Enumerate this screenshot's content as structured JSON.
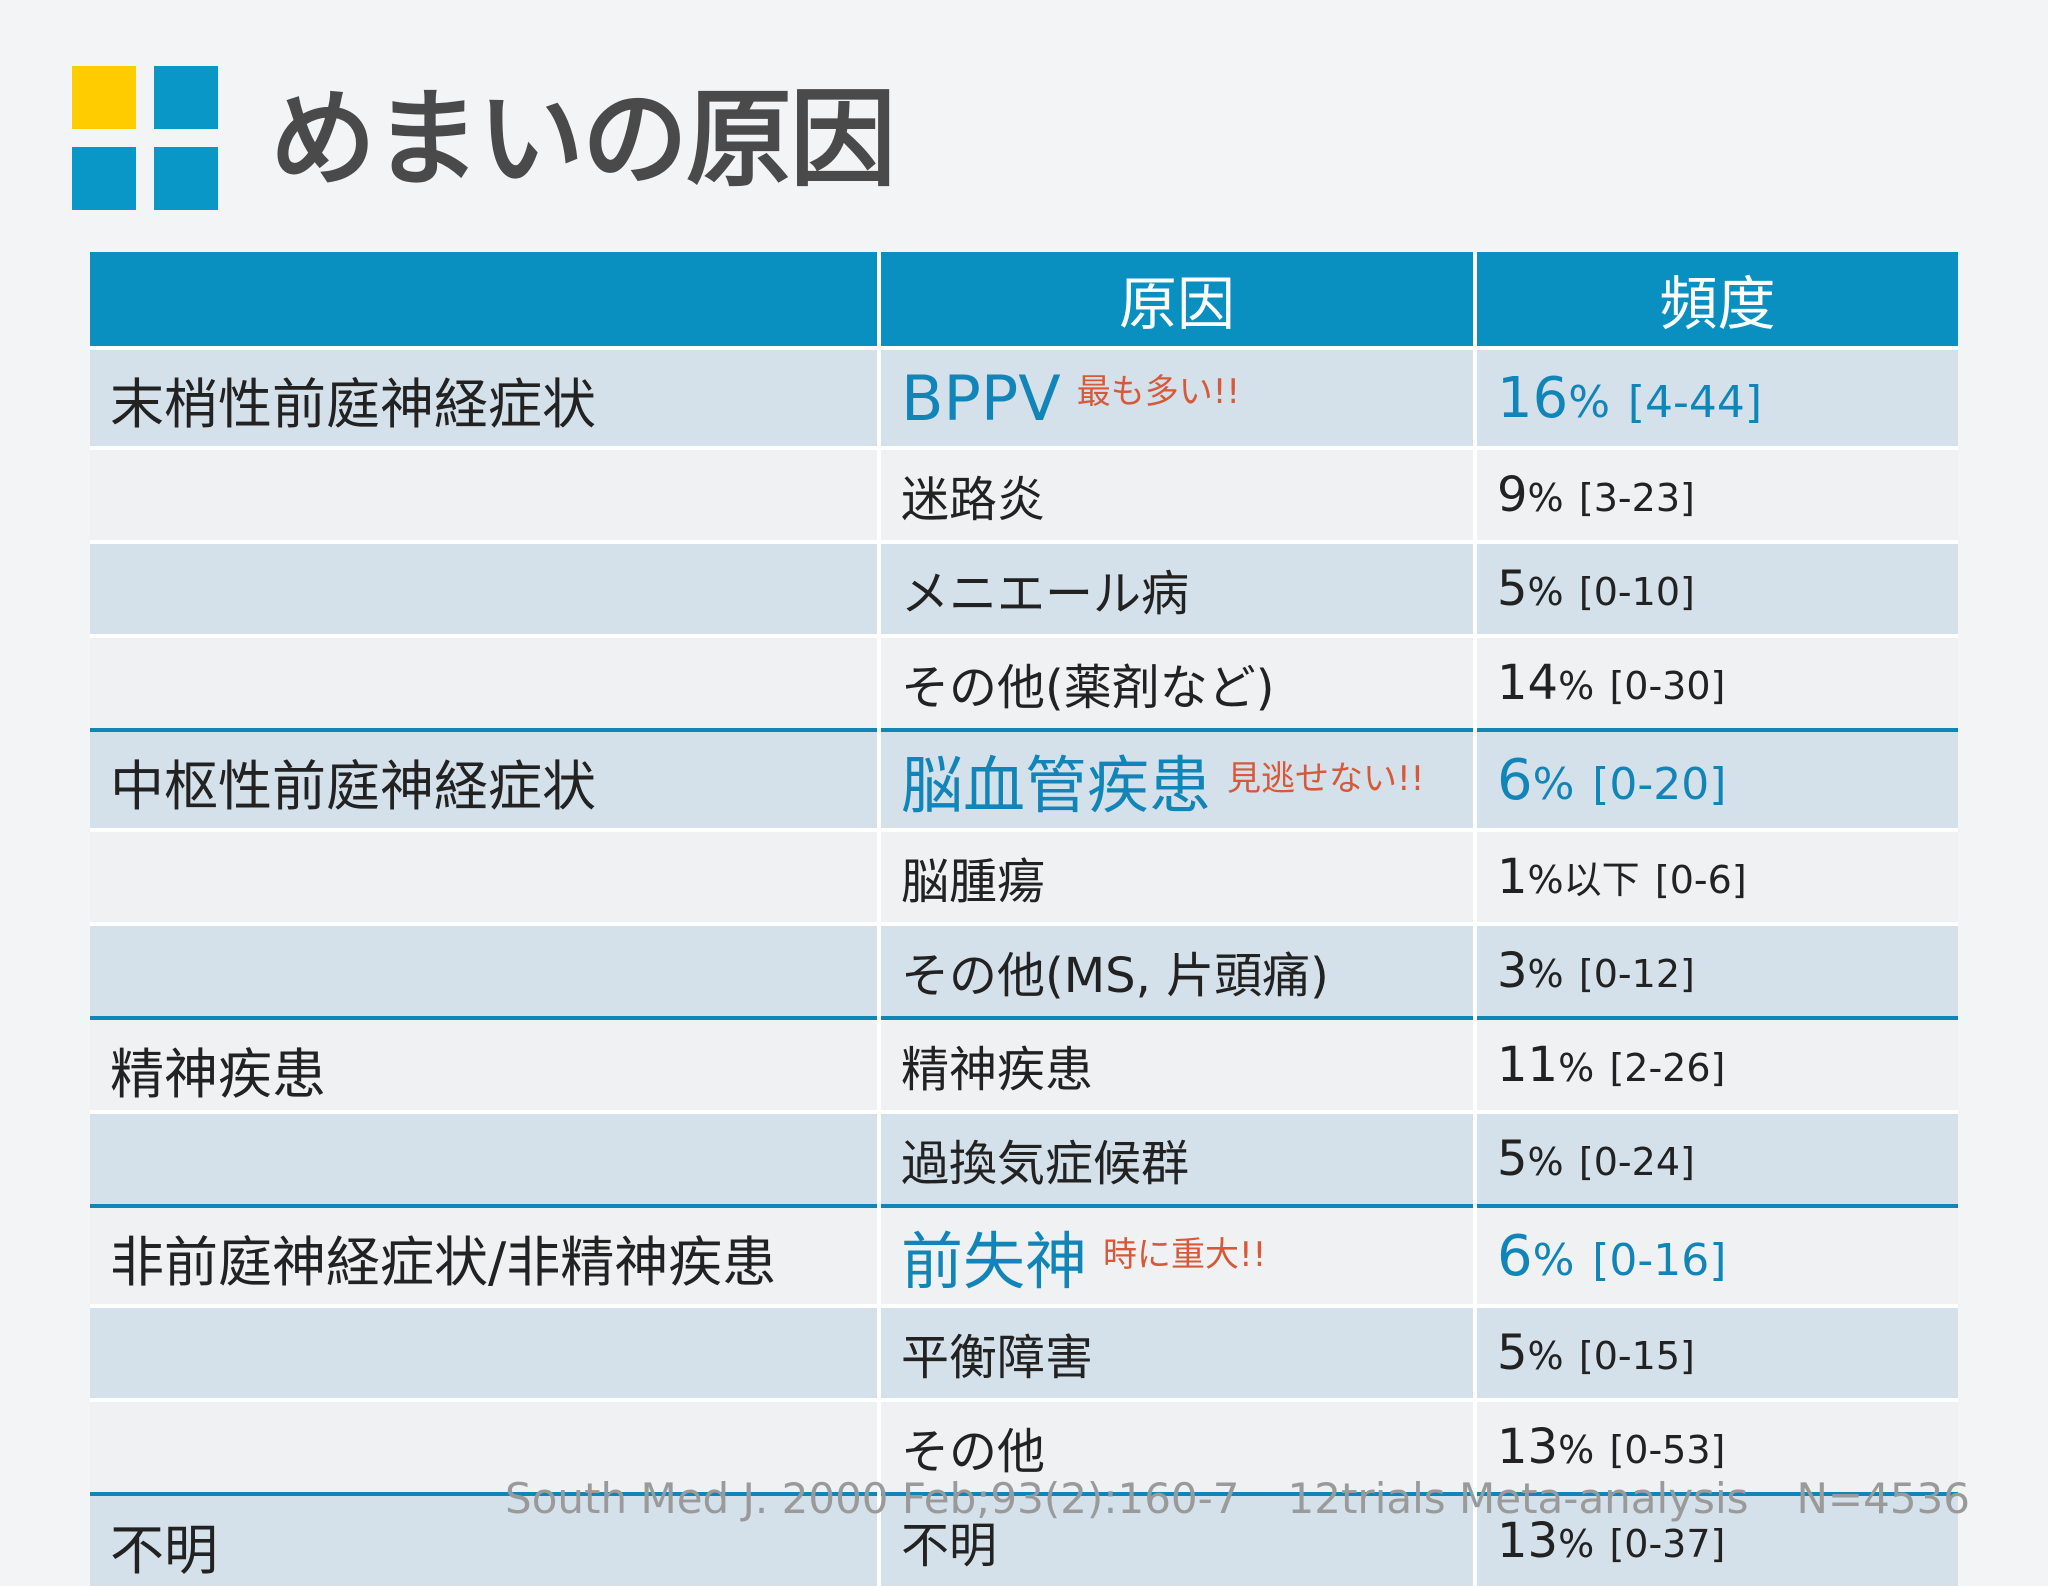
{
  "title": "めまいの原因",
  "colors": {
    "header_blue": "#0990c1",
    "highlight_text": "#1185b8",
    "note_red": "#d65a3a",
    "logo_yellow": "#ffcc00",
    "logo_blue": "#0997c7",
    "group_divider": "#0f86b6"
  },
  "table": {
    "headers": [
      "",
      "原因",
      "頻度"
    ],
    "rows": [
      {
        "group": "末梢性前庭神経症状",
        "cause": "BPPV",
        "note": "最も多い!!",
        "freq": "16",
        "unit": "%",
        "range": "[4-44]",
        "highlight": true
      },
      {
        "group": "",
        "cause": "迷路炎",
        "note": "",
        "freq": "9",
        "unit": "%",
        "range": "[3-23]",
        "highlight": false
      },
      {
        "group": "",
        "cause": "メニエール病",
        "note": "",
        "freq": "5",
        "unit": "%",
        "range": "[0-10]",
        "highlight": false
      },
      {
        "group": "",
        "cause": "その他(薬剤など)",
        "note": "",
        "freq": "14",
        "unit": "%",
        "range": "[0-30]",
        "highlight": false
      },
      {
        "group": "中枢性前庭神経症状",
        "cause": "脳血管疾患",
        "note": "見逃せない!!",
        "freq": "6",
        "unit": "%",
        "range": "[0-20]",
        "highlight": true
      },
      {
        "group": "",
        "cause": "脳腫瘍",
        "note": "",
        "freq": "1",
        "unit": "%以下",
        "range": "[0-6]",
        "highlight": false
      },
      {
        "group": "",
        "cause": "その他(MS, 片頭痛)",
        "note": "",
        "freq": "3",
        "unit": "%",
        "range": "[0-12]",
        "highlight": false
      },
      {
        "group": "精神疾患",
        "cause": "精神疾患",
        "note": "",
        "freq": "11",
        "unit": "%",
        "range": "[2-26]",
        "highlight": false
      },
      {
        "group": "",
        "cause": "過換気症候群",
        "note": "",
        "freq": "5",
        "unit": "%",
        "range": "[0-24]",
        "highlight": false
      },
      {
        "group": "非前庭神経症状/非精神疾患",
        "cause": "前失神",
        "note": "時に重大!!",
        "freq": "6",
        "unit": "%",
        "range": "[0-16]",
        "highlight": true
      },
      {
        "group": "",
        "cause": "平衡障害",
        "note": "",
        "freq": "5",
        "unit": "%",
        "range": "[0-15]",
        "highlight": false
      },
      {
        "group": "",
        "cause": "その他",
        "note": "",
        "freq": "13",
        "unit": "%",
        "range": "[0-53]",
        "highlight": false
      },
      {
        "group": "不明",
        "cause": "不明",
        "note": "",
        "freq": "13",
        "unit": "%",
        "range": "[0-37]",
        "highlight": false
      }
    ]
  },
  "footer": {
    "citation": "South Med J. 2000 Feb;93(2):160-7",
    "study": "12trials Meta-analysis",
    "n": "N=4536"
  }
}
